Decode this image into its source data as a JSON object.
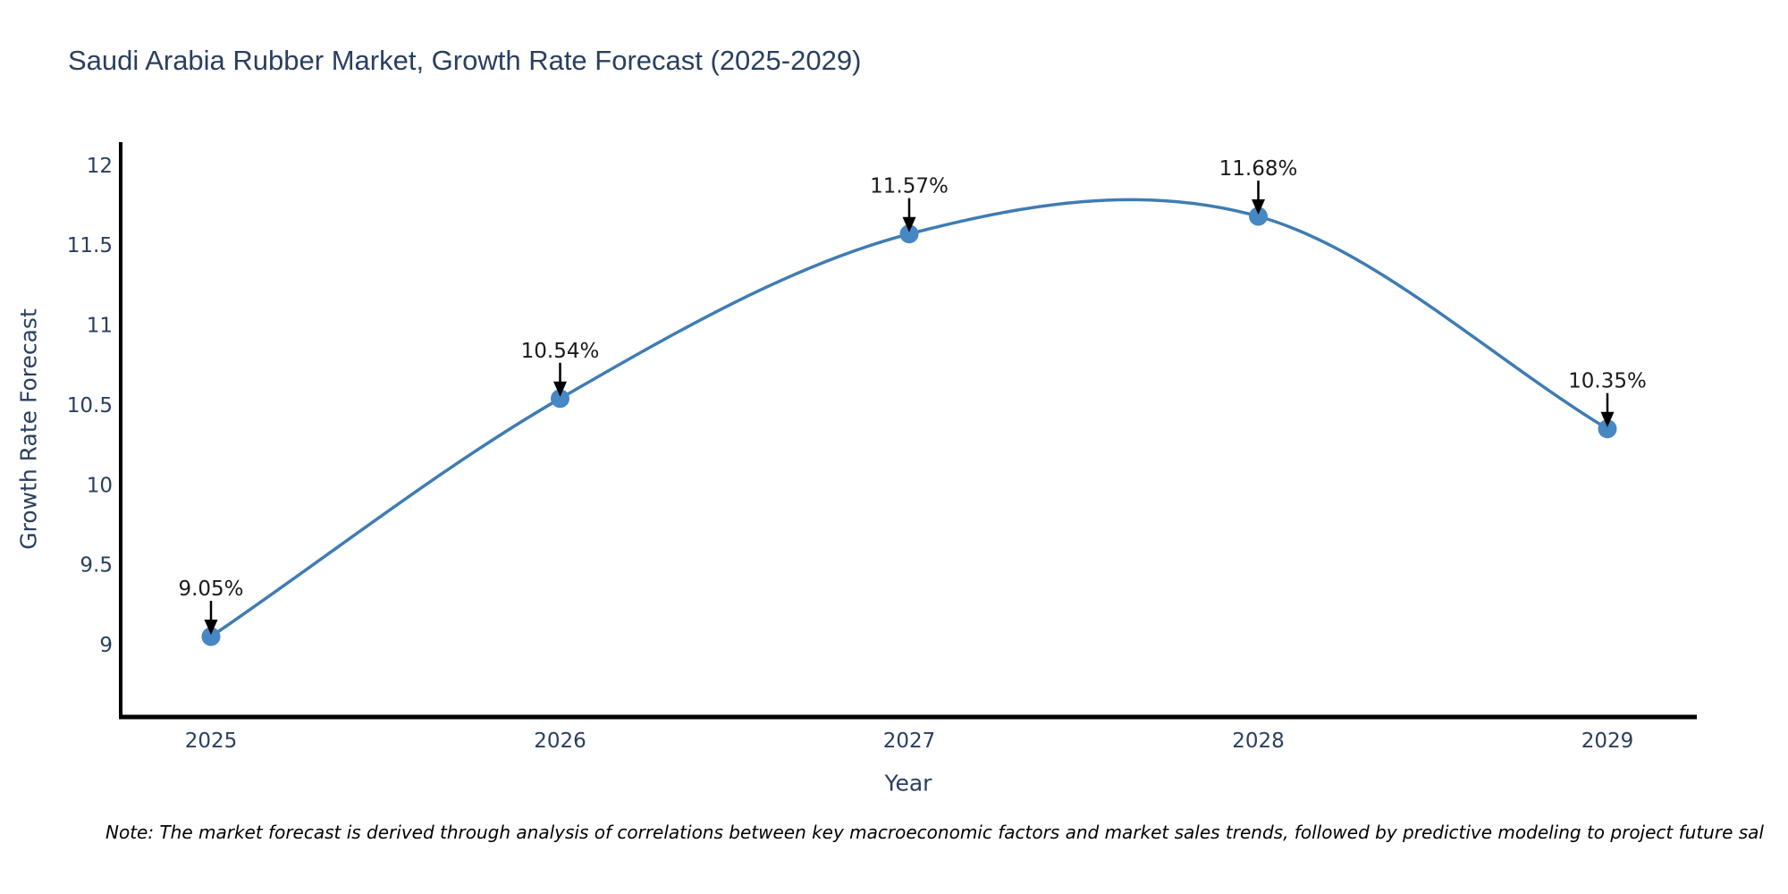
{
  "title": "Saudi Arabia Rubber Market, Growth Rate Forecast (2025-2029)",
  "footnote": "Note: The market forecast is derived through analysis of correlations between key macroeconomic factors and market sales trends, followed by predictive modeling to project future sal",
  "chart_data": {
    "type": "line",
    "title": "Saudi Arabia Rubber Market, Growth Rate Forecast (2025-2029)",
    "xlabel": "Year",
    "ylabel": "Growth Rate Forecast",
    "categories": [
      "2025",
      "2026",
      "2027",
      "2028",
      "2029"
    ],
    "series": [
      {
        "name": "Growth Rate Forecast",
        "values": [
          9.05,
          10.54,
          11.57,
          11.68,
          10.35
        ]
      }
    ],
    "annotations": [
      "9.05%",
      "10.54%",
      "11.57%",
      "11.68%",
      "10.35%"
    ],
    "ylim": [
      9,
      12
    ],
    "yticks": [
      9,
      9.5,
      10,
      10.5,
      11,
      11.5,
      12
    ],
    "ytick_labels": [
      "9",
      "9.5",
      "10",
      "10.5",
      "11",
      "11.5",
      "12"
    ],
    "grid": false,
    "legend": "none",
    "smooth": true
  },
  "colors": {
    "line": "#3f7cb3",
    "marker": "#4787c4",
    "axis": "#000000",
    "tick_text": "#2a3f5f",
    "annotation_text": "#1a1a1a",
    "annotation_arrow": "#000000",
    "title_text": "#2a3f5f"
  }
}
